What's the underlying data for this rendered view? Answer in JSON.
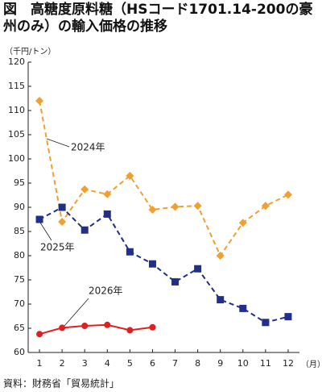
{
  "chart_data": {
    "type": "line",
    "title": "図　高糖度原料糖（HSコード1701.14-200の豪州のみ）の輸入価格の推移",
    "y_unit": "（千円/トン）",
    "x_unit": "（月）",
    "source": "資料：財務省「貿易統計」",
    "x": [
      1,
      2,
      3,
      4,
      5,
      6,
      7,
      8,
      9,
      10,
      11,
      12
    ],
    "xlim": [
      0.5,
      12.5
    ],
    "xticks": [
      1,
      2,
      3,
      4,
      5,
      6,
      7,
      8,
      9,
      10,
      11,
      12
    ],
    "ylim": [
      60,
      120
    ],
    "yticks": [
      60,
      65,
      70,
      75,
      80,
      85,
      90,
      95,
      100,
      105,
      110,
      115,
      120
    ],
    "series": [
      {
        "name": "2024年",
        "color": "#f0a030",
        "marker": "diamond",
        "dashed": true,
        "values": [
          112,
          87,
          93.7,
          92.7,
          96.5,
          89.5,
          90.1,
          90.3,
          80,
          86.8,
          90.3,
          92.6
        ]
      },
      {
        "name": "2025年",
        "color": "#1f2f8a",
        "marker": "square",
        "dashed": true,
        "values": [
          87.5,
          90,
          85.3,
          88.6,
          80.8,
          78.3,
          74.6,
          77.3,
          70.9,
          69.1,
          66.2,
          67.4
        ]
      },
      {
        "name": "2026年",
        "color": "#e02020",
        "marker": "circle",
        "dashed": false,
        "values": [
          63.8,
          65.1,
          65.5,
          65.7,
          64.6,
          65.2,
          null,
          null,
          null,
          null,
          null,
          null
        ]
      }
    ]
  }
}
